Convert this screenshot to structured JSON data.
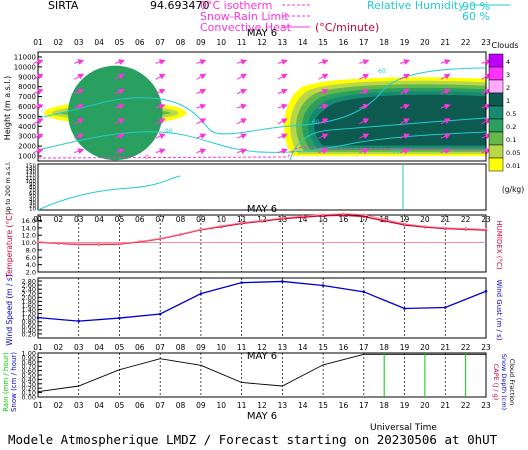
{
  "header": {
    "station": "SIRTA",
    "coords": "94.693470",
    "legend": {
      "isotherm": "0°C isotherm",
      "snow_rain": "Snow-Rain Limit",
      "convective": "Convective Heat",
      "convective_units": "(°C/minute)",
      "rh_label": "Relative Humidity",
      "rh_90": "90 %",
      "rh_60": "60 %"
    }
  },
  "footer": "Modele Atmospherique LMDZ / Forecast starting on 20230506 at 0hUT",
  "day_label": "MAY  6",
  "xaxis_label": "Universal Time",
  "hours": [
    "01",
    "02",
    "03",
    "04",
    "05",
    "06",
    "07",
    "08",
    "09",
    "10",
    "11",
    "12",
    "13",
    "14",
    "15",
    "16",
    "17",
    "18",
    "19",
    "20",
    "21",
    "22",
    "23"
  ],
  "colors": {
    "temperature": "#cc0033",
    "humidex": "#ff7788",
    "wind": "#0000cc",
    "wind_arrow": "#ff33dd",
    "rh": "#22cccc",
    "cloud_fraction": "#000000",
    "rain": "#00cc00",
    "isotherm": "#ff33dd"
  },
  "chart_data": [
    {
      "type": "heatmap",
      "name": "Clouds (g/kg)",
      "ylabel": "Height (m a.s.l.)",
      "ylabel_lower": "Up to 200 m a.s.l.",
      "yticks": [
        1000,
        2000,
        3000,
        4000,
        5000,
        6000,
        7000,
        8000,
        9000,
        10000,
        11000
      ],
      "yticks_lower": [
        10,
        20,
        30,
        40,
        50,
        60,
        70,
        80,
        90,
        100,
        110,
        120,
        130,
        140,
        150
      ],
      "colorbar": {
        "title": "Clouds",
        "units": "(g/kg)",
        "levels": [
          "4",
          "3",
          "2",
          "1",
          "0.5",
          "0.2",
          "0.1",
          "0.05",
          "0.01"
        ],
        "colors": [
          "#c000ff",
          "#ff33ff",
          "#ffaaff",
          "#0c5a50",
          "#168a70",
          "#2aa060",
          "#66b84a",
          "#b8d84a",
          "#ffff00"
        ]
      },
      "cloud_regions": [
        {
          "hours": [
            1,
            8
          ],
          "base_m": 4200,
          "top_m": 6500,
          "max_gkg": 0.2
        },
        {
          "hours": [
            13,
            23
          ],
          "base_m": 1000,
          "top_m": 8800,
          "max_gkg": 1
        }
      ],
      "rh_contour_labels": [
        "60",
        "60",
        "90",
        "60"
      ],
      "isotherm_label": "0"
    },
    {
      "type": "line",
      "name": "Temperature",
      "ylabel": "Temperature (°C)",
      "ylabel_right": "HUMIDEX (°C)",
      "yticks": [
        2.0,
        4.0,
        6.0,
        8.0,
        10.0,
        12.0,
        14.0,
        16.0
      ],
      "ylim": [
        2,
        17.5
      ],
      "x": [
        1,
        2,
        3,
        4,
        5,
        6,
        7,
        8,
        9,
        10,
        11,
        12,
        13,
        14,
        15,
        16,
        17,
        18,
        19,
        20,
        21,
        22,
        23
      ],
      "series": [
        {
          "values": [
            10.1,
            9.8,
            9.5,
            9.5,
            9.6,
            10.2,
            11.0,
            12.2,
            13.5,
            14.3,
            15.2,
            15.8,
            16.5,
            16.9,
            17.3,
            17.4,
            17.1,
            15.9,
            14.8,
            14.2,
            13.8,
            13.6,
            13.4
          ]
        },
        {
          "values": [
            10.2,
            9.9,
            9.6,
            9.6,
            9.7,
            10.3,
            11.1,
            12.3,
            13.6,
            14.5,
            15.4,
            16.0,
            16.7,
            17.2,
            17.6,
            17.8,
            17.6,
            16.3,
            15.1,
            14.4,
            14.0,
            13.8,
            13.6
          ]
        }
      ]
    },
    {
      "type": "line",
      "name": "Wind Speed",
      "ylabel": "Wind Speed (m / s)",
      "ylabel_right": "Wind Gust (m / s)",
      "yticks": [
        0.2,
        0.4,
        0.6,
        0.8,
        1.0,
        1.2,
        1.4,
        1.6,
        1.8,
        2.0,
        2.2,
        2.4,
        2.6,
        2.8
      ],
      "ylim": [
        0,
        2.95
      ],
      "x": [
        1,
        3,
        5,
        7,
        9,
        11,
        13,
        15,
        17,
        19,
        21,
        23
      ],
      "series": [
        {
          "values": [
            1.0,
            0.83,
            0.98,
            1.18,
            2.18,
            2.72,
            2.78,
            2.58,
            2.27,
            1.45,
            1.5,
            2.3
          ]
        }
      ]
    },
    {
      "type": "line",
      "name": "Rain / Cloud fraction",
      "ylabel": "Rain (mm / hour)",
      "ylabel2": "Snow (cm / hour)",
      "ylabel_right": "CAPE (J / g)",
      "ylabel_right2": "Snow Depth (cm)",
      "ylabel_right3": "Cloud Fraction",
      "yticks": [
        0.0,
        0.1,
        0.2,
        0.3,
        0.4,
        0.5,
        0.6,
        0.7,
        0.8,
        0.9,
        1.0
      ],
      "ylim": [
        0,
        1.0
      ],
      "x": [
        1,
        3,
        5,
        7,
        9,
        11,
        13,
        15,
        17,
        19,
        21,
        23
      ],
      "series": [
        {
          "values": [
            0.12,
            0.25,
            0.62,
            0.87,
            0.72,
            0.33,
            0.25,
            0.73,
            0.97,
            0.97,
            0.97,
            0.97
          ]
        }
      ],
      "rain_hours": [
        18,
        20,
        22
      ]
    }
  ]
}
